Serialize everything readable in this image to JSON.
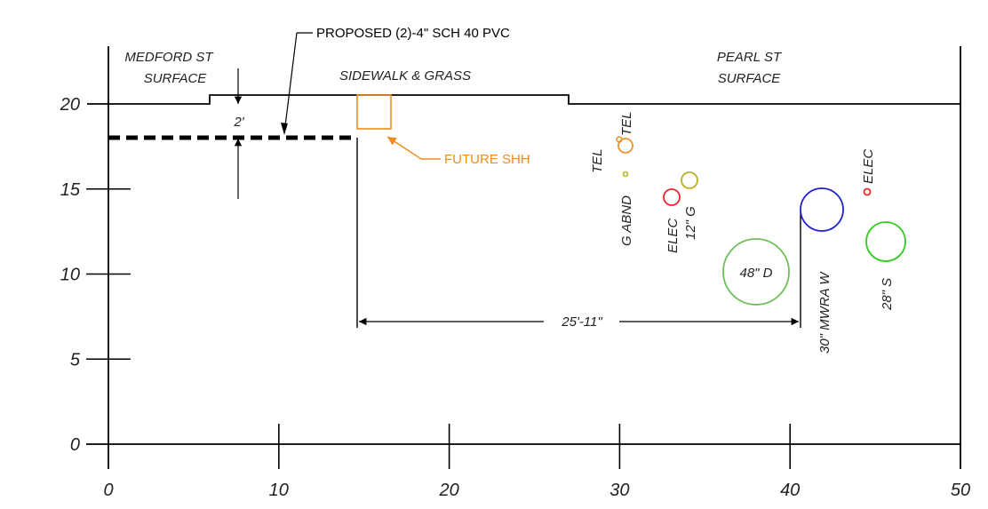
{
  "chart_data": {
    "type": "cross-section",
    "x_ticks": [
      "0",
      "10",
      "20",
      "30",
      "40",
      "50"
    ],
    "y_ticks": [
      "0",
      "5",
      "10",
      "15",
      "20"
    ],
    "xlim": [
      0,
      50
    ],
    "ylim": [
      0,
      20
    ],
    "surface_labels": {
      "left": [
        "MEDFORD ST",
        "SURFACE"
      ],
      "middle": "SIDEWALK & GRASS",
      "right": [
        "PEARL ST",
        "SURFACE"
      ]
    },
    "callouts": {
      "proposed": "PROPOSED (2)-4\" SCH 40 PVC",
      "future_shh": "FUTURE SHH"
    },
    "dimensions": {
      "depth_label": "2'",
      "horizontal_label": "25'-11\""
    },
    "utilities": [
      {
        "label": "TEL",
        "x": 28.5,
        "y": 17.9,
        "color": "#f0932a"
      },
      {
        "label": "TEL",
        "x": 30.4,
        "y": 17.5,
        "color": "#f0932a"
      },
      {
        "label": "G ABND",
        "x": 30.4,
        "y": 15.8,
        "color": "#b9b020"
      },
      {
        "label": "12\" G",
        "x": 34.1,
        "y": 15.5,
        "color": "#b9b020"
      },
      {
        "label": "ELEC",
        "x": 33.1,
        "y": 14.5,
        "color": "#e8262a"
      },
      {
        "label": "ELEC",
        "x": 44.5,
        "y": 14.8,
        "color": "#e8262a"
      },
      {
        "label": "48\" D",
        "x": 38.1,
        "y": 10.1,
        "color": "#6fbf5a"
      },
      {
        "label": "30\" MWRA W",
        "x": 41.8,
        "y": 13.8,
        "color": "#1f1fcf"
      },
      {
        "label": "28\" S",
        "x": 45.6,
        "y": 11.9,
        "color": "#33cc20"
      }
    ]
  }
}
